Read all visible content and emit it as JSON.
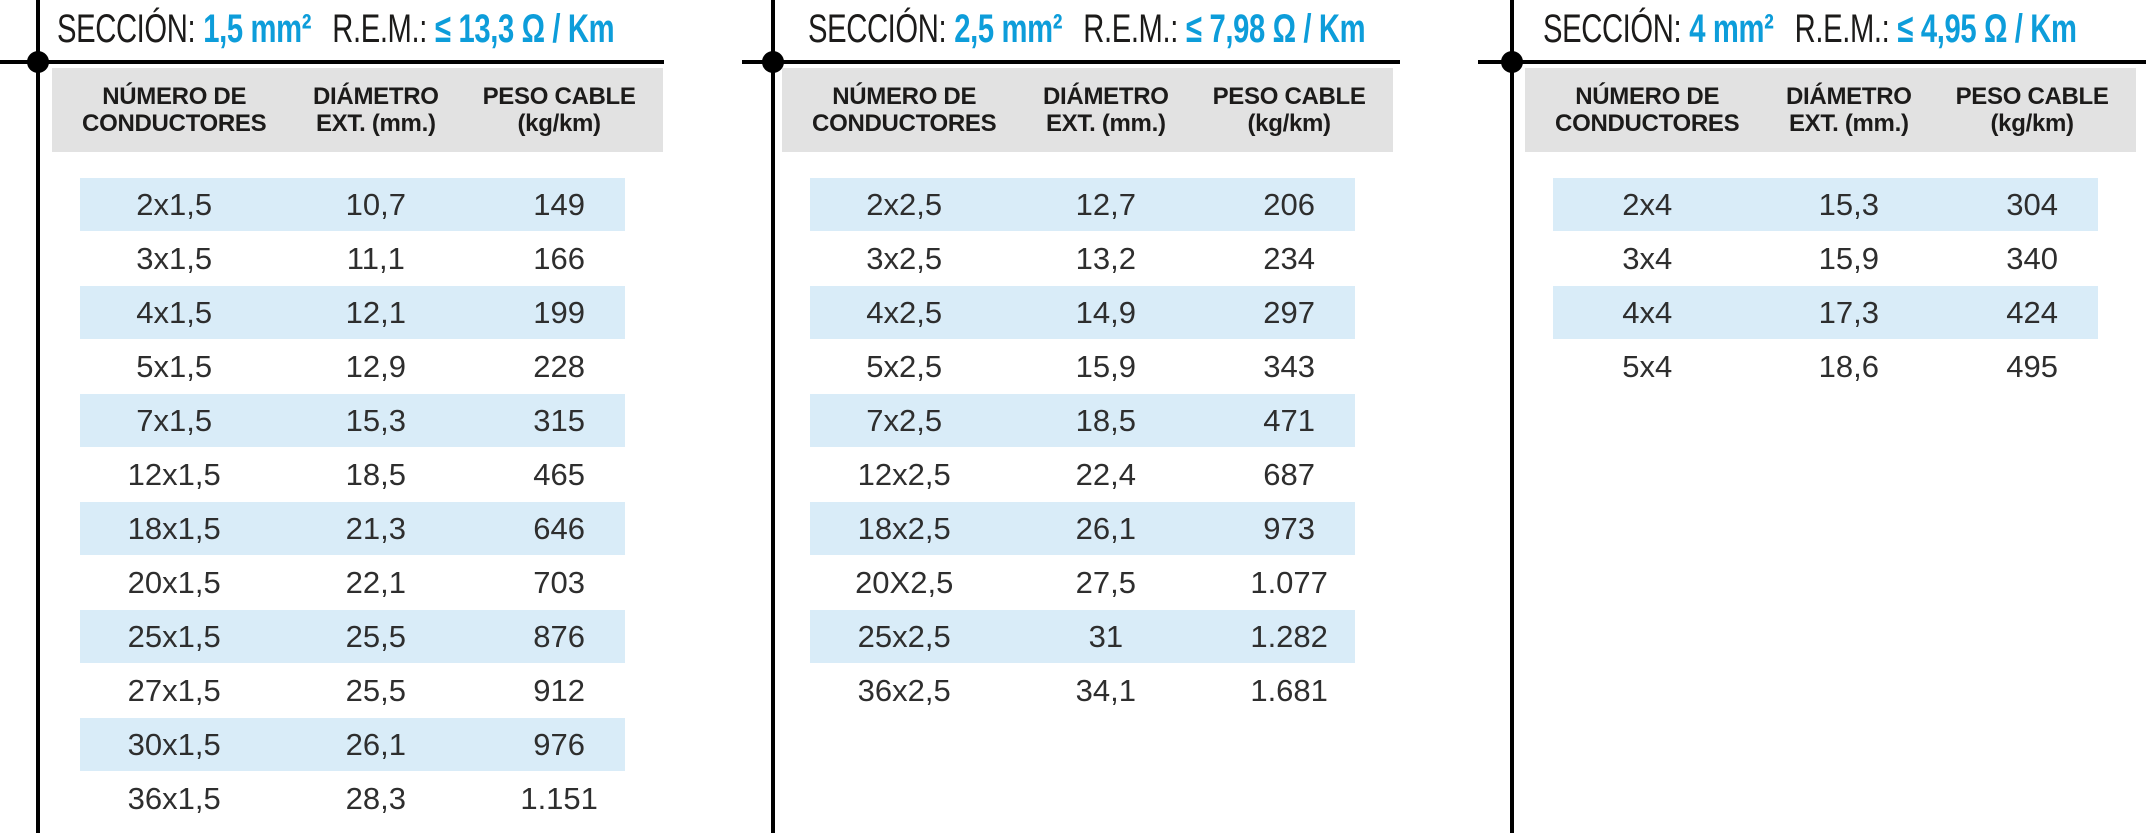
{
  "accent_color": "#0d9dda",
  "stripe_color": "#d9ecf8",
  "header_bg_color": "#e2e2e2",
  "tables": [
    {
      "title": {
        "seccion_label": "SECCIÓN:",
        "seccion_value": "1,5 mm²",
        "rem_label": "R.E.M.:",
        "rem_value": "≤ 13,3 Ω / Km"
      },
      "columns": [
        {
          "line1": "NÚMERO DE",
          "line2": "CONDUCTORES"
        },
        {
          "line1": "DIÁMETRO",
          "line2": "EXT. (mm.)"
        },
        {
          "line1": "PESO CABLE",
          "line2": "(kg/km)"
        }
      ],
      "rows": [
        [
          "2x1,5",
          "10,7",
          "149"
        ],
        [
          "3x1,5",
          "11,1",
          "166"
        ],
        [
          "4x1,5",
          "12,1",
          "199"
        ],
        [
          "5x1,5",
          "12,9",
          "228"
        ],
        [
          "7x1,5",
          "15,3",
          "315"
        ],
        [
          "12x1,5",
          "18,5",
          "465"
        ],
        [
          "18x1,5",
          "21,3",
          "646"
        ],
        [
          "20x1,5",
          "22,1",
          "703"
        ],
        [
          "25x1,5",
          "25,5",
          "876"
        ],
        [
          "27x1,5",
          "25,5",
          "912"
        ],
        [
          "30x1,5",
          "26,1",
          "976"
        ],
        [
          "36x1,5",
          "28,3",
          "1.151"
        ]
      ]
    },
    {
      "title": {
        "seccion_label": "SECCIÓN:",
        "seccion_value": "2,5 mm²",
        "rem_label": "R.E.M.:",
        "rem_value": "≤ 7,98 Ω / Km"
      },
      "columns": [
        {
          "line1": "NÚMERO DE",
          "line2": "CONDUCTORES"
        },
        {
          "line1": "DIÁMETRO",
          "line2": "EXT. (mm.)"
        },
        {
          "line1": "PESO CABLE",
          "line2": "(kg/km)"
        }
      ],
      "rows": [
        [
          "2x2,5",
          "12,7",
          "206"
        ],
        [
          "3x2,5",
          "13,2",
          "234"
        ],
        [
          "4x2,5",
          "14,9",
          "297"
        ],
        [
          "5x2,5",
          "15,9",
          "343"
        ],
        [
          "7x2,5",
          "18,5",
          "471"
        ],
        [
          "12x2,5",
          "22,4",
          "687"
        ],
        [
          "18x2,5",
          "26,1",
          "973"
        ],
        [
          "20X2,5",
          "27,5",
          "1.077"
        ],
        [
          "25x2,5",
          "31",
          "1.282"
        ],
        [
          "36x2,5",
          "34,1",
          "1.681"
        ]
      ]
    },
    {
      "title": {
        "seccion_label": "SECCIÓN:",
        "seccion_value": "4 mm²",
        "rem_label": "R.E.M.:",
        "rem_value": "≤ 4,95 Ω / Km"
      },
      "columns": [
        {
          "line1": "NÚMERO DE",
          "line2": "CONDUCTORES"
        },
        {
          "line1": "DIÁMETRO",
          "line2": "EXT. (mm.)"
        },
        {
          "line1": "PESO CABLE",
          "line2": "(kg/km)"
        }
      ],
      "rows": [
        [
          "2x4",
          "15,3",
          "304"
        ],
        [
          "3x4",
          "15,9",
          "340"
        ],
        [
          "4x4",
          "17,3",
          "424"
        ],
        [
          "5x4",
          "18,6",
          "495"
        ]
      ]
    }
  ]
}
